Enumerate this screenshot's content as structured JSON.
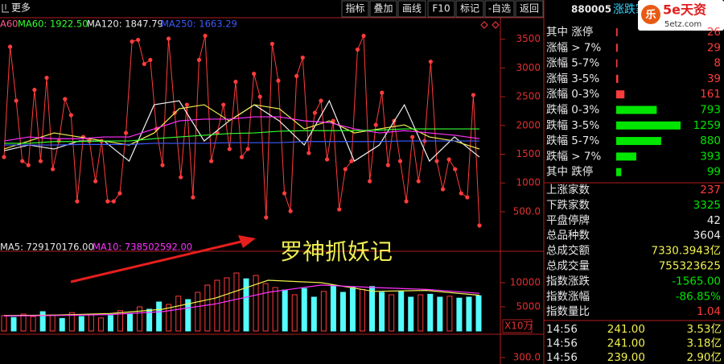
{
  "toolbar": {
    "more": "更多",
    "buttons": [
      "指标",
      "叠加",
      "画线",
      "F10",
      "标记",
      "-自选",
      "返回"
    ]
  },
  "header": {
    "code": "880005",
    "name": "涨跌家数",
    "logo_icon": "乐",
    "logo_text": "5e天资",
    "logo_url": "5etz.com"
  },
  "annotation": "罗神抓妖记",
  "chart_data": [
    {
      "type": "line",
      "legend_texts": [
        {
          "text": "A60",
          "color": "#ff5a8c"
        },
        {
          "text": "MA60: 1922.50",
          "color": "#32ff32"
        },
        {
          "text": "MA120: 1847.79",
          "color": "#e8e8e8"
        },
        {
          "text": "MA250: 1663.29",
          "color": "#3c5aff"
        }
      ],
      "ylim": [
        -90,
        3650
      ],
      "yticks": [
        3500,
        3000,
        2500,
        2000,
        1500,
        1000,
        {
          "value": 500,
          "label": "500.0"
        }
      ],
      "series": [
        {
          "color": "#ff3c3c",
          "markers": true,
          "values": [
            1450,
            3370,
            2430,
            1380,
            1310,
            2620,
            1380,
            2830,
            1240,
            1730,
            2460,
            2180,
            680,
            1800,
            1730,
            1030,
            1730,
            680,
            680,
            820,
            1870,
            3460,
            3490,
            3070,
            3140,
            1940,
            1310,
            3510,
            2220,
            1100,
            2360,
            750,
            3140,
            3560,
            1380,
            1870,
            2360,
            1590,
            2760,
            1450,
            1590,
            2900,
            2500,
            400,
            3420,
            2780,
            820,
            510,
            2860,
            3180,
            1520,
            2220,
            2430,
            1410,
            2080,
            540,
            1240,
            1380,
            3320,
            3560,
            1030,
            2010,
            2570,
            1310,
            2080,
            1380,
            680,
            1800,
            1030,
            1730,
            3110,
            1380,
            890,
            1410,
            1240,
            820,
            750,
            2530,
            260
          ]
        },
        {
          "color": "#f0f0f0",
          "values": [
            1560,
            1660,
            1590,
            1730,
            1730,
            1380,
            2360,
            2430,
            1730,
            2080,
            2360,
            2080,
            1660,
            2430,
            1380,
            1660,
            2360,
            1380,
            1800,
            1450
          ]
        },
        {
          "color": "#f0f050",
          "values": [
            1590,
            1730,
            1870,
            1800,
            1730,
            1660,
            1870,
            2290,
            2360,
            2080,
            2360,
            2290,
            1940,
            2080,
            1870,
            1940,
            2010,
            1800,
            1730,
            1590
          ]
        },
        {
          "color": "#ff32ff",
          "values": [
            1730,
            1800,
            1770,
            1770,
            1800,
            1800,
            1940,
            2080,
            2110,
            2110,
            2150,
            2150,
            2080,
            2050,
            1940,
            1870,
            1910,
            1870,
            1830,
            1770
          ]
        },
        {
          "color": "#32ff32",
          "values": [
            1690,
            1690,
            1720,
            1720,
            1730,
            1730,
            1770,
            1800,
            1830,
            1860,
            1870,
            1900,
            1910,
            1910,
            1910,
            1920,
            1940,
            1940,
            1940,
            1940
          ]
        },
        {
          "color": "#3c5aff",
          "values": [
            1660,
            1660,
            1660,
            1670,
            1670,
            1670,
            1690,
            1690,
            1690,
            1700,
            1700,
            1700,
            1720,
            1720,
            1720,
            1720,
            1730,
            1730,
            1730,
            1730
          ]
        }
      ]
    },
    {
      "type": "bar",
      "legend_texts": [
        {
          "text": "MA5: 729170176.00",
          "color": "#e8e8e8"
        },
        {
          "text": "MA10: 738502592.00",
          "color": "#ff32ff"
        }
      ],
      "ylim": [
        0,
        16000
      ],
      "yticks": [
        10000,
        5000
      ],
      "unit_label": "X10万",
      "hollow_color": "#ff3c3c",
      "values": [
        3200,
        2800,
        3500,
        3000,
        4000,
        3300,
        2600,
        3800,
        3000,
        3500,
        2700,
        3200,
        4200,
        3600,
        5000,
        4500,
        6000,
        5500,
        7200,
        6500,
        8000,
        9500,
        10500,
        11000,
        12000,
        10800,
        11500,
        9800,
        9000,
        8500,
        7500,
        8800,
        7000,
        8200,
        9500,
        8000,
        9000,
        8600,
        9200,
        8000,
        7500,
        8200,
        7000,
        7500,
        7600,
        7000,
        7200,
        6800,
        7000,
        7300
      ],
      "colors": [
        "#ff3c3c",
        "#54fcfc",
        "#ff3c3c",
        "#ff3c3c",
        "#54fcfc",
        "#ff3c3c",
        "#54fcfc",
        "#ff3c3c",
        "#54fcfc",
        "#ff3c3c",
        "#ff3c3c",
        "#54fcfc",
        "#ff3c3c",
        "#54fcfc",
        "#ff3c3c",
        "#54fcfc",
        "#54fcfc",
        "#ff3c3c",
        "#ff3c3c",
        "#54fcfc",
        "#ff3c3c",
        "#ff3c3c",
        "#ff3c3c",
        "#ff3c3c",
        "#ff3c3c",
        "#54fcfc",
        "#ff3c3c",
        "#ff3c3c",
        "#ff3c3c",
        "#54fcfc",
        "#ff3c3c",
        "#54fcfc",
        "#54fcfc",
        "#ff3c3c",
        "#54fcfc",
        "#54fcfc",
        "#54fcfc",
        "#ff3c3c",
        "#54fcfc",
        "#54fcfc",
        "#ff3c3c",
        "#54fcfc",
        "#54fcfc",
        "#ff3c3c",
        "#54fcfc",
        "#54fcfc",
        "#ff3c3c",
        "#54fcfc",
        "#54fcfc",
        "#54fcfc"
      ],
      "series": [
        {
          "color": "#f0f050",
          "values": [
            3200,
            3300,
            3600,
            4500,
            6800,
            10500,
            10000,
            8200,
            8400,
            7400
          ]
        },
        {
          "color": "#ff32ff",
          "values": [
            3100,
            3200,
            3400,
            4000,
            5600,
            8000,
            9500,
            9000,
            8600,
            7800
          ]
        }
      ]
    },
    {
      "type": "line",
      "ylim": [
        250,
        350
      ],
      "yticks": [
        {
          "value": 300,
          "label": "300.0"
        }
      ],
      "series": []
    }
  ],
  "breadth": {
    "rows": [
      {
        "label": "其中 涨停",
        "value": 26,
        "color": "#ff3c3c"
      },
      {
        "label": "涨幅 > 7%",
        "value": 29,
        "color": "#ff3c3c"
      },
      {
        "label": "涨幅 5-7%",
        "value": 8,
        "color": "#ff3c3c"
      },
      {
        "label": "涨幅 3-5%",
        "value": 39,
        "color": "#ff3c3c"
      },
      {
        "label": "涨幅 0-3%",
        "value": 161,
        "color": "#ff3c3c"
      },
      {
        "label": "跌幅 0-3%",
        "value": 793,
        "color": "#00e600"
      },
      {
        "label": "跌幅 3-5%",
        "value": 1259,
        "color": "#00e600"
      },
      {
        "label": "跌幅 5-7%",
        "value": 880,
        "color": "#00e600"
      },
      {
        "label": "跌幅 > 7%",
        "value": 393,
        "color": "#00e600"
      },
      {
        "label": "其中 跌停",
        "value": 99,
        "color": "#00e600"
      }
    ]
  },
  "stats": {
    "rows": [
      {
        "label": "上涨家数",
        "value": "237",
        "color": "#ff3c3c"
      },
      {
        "label": "下跌家数",
        "value": "3325",
        "color": "#00e600"
      },
      {
        "label": "平盘停牌",
        "value": "42",
        "color": "#e8e8e8"
      },
      {
        "label": "总品种数",
        "value": "3604",
        "color": "#e8e8e8"
      },
      {
        "label": "总成交额",
        "value": "7330.3943亿",
        "color": "#f0f050"
      },
      {
        "label": "总成交量",
        "value": "755323625",
        "color": "#f0f050"
      },
      {
        "label": "指数涨跌",
        "value": "-1565.00",
        "color": "#00e600"
      },
      {
        "label": "指数涨幅",
        "value": "-86.85%",
        "color": "#00e600"
      },
      {
        "label": "指数量比",
        "value": "1.04",
        "color": "#ff3c3c"
      }
    ]
  },
  "ticks": {
    "rows": [
      [
        "14:56",
        "241.00",
        "3.53亿"
      ],
      [
        "14:56",
        "241.00",
        "3.18亿"
      ],
      [
        "14:56",
        "239.00",
        "2.90亿"
      ]
    ]
  }
}
